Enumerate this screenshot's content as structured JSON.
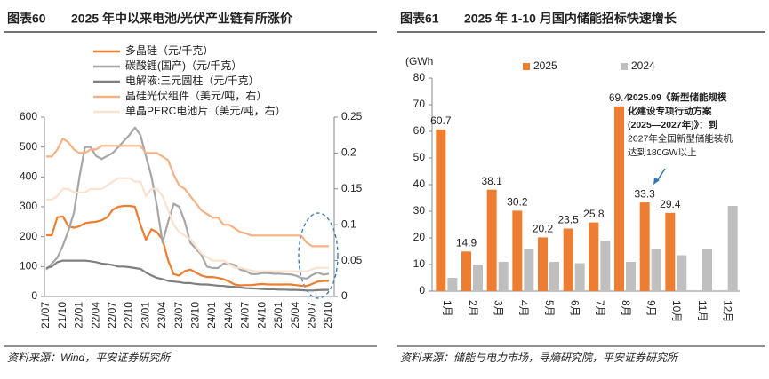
{
  "chart_data": [
    {
      "type": "line",
      "label": "图表60",
      "title": "2025 年中以来电池/光伏产业链有所涨价",
      "source": "资料来源：Wind，平安证券研究所",
      "categories": [
        "21/07",
        null,
        null,
        "21/10",
        null,
        null,
        "22/01",
        null,
        null,
        "22/04",
        null,
        null,
        "22/07",
        null,
        null,
        "22/10",
        null,
        null,
        "23/01",
        null,
        null,
        "23/04",
        null,
        null,
        "23/07",
        null,
        null,
        "23/10",
        null,
        null,
        "24/01",
        null,
        null,
        "24/04",
        null,
        null,
        "24/07",
        null,
        null,
        "24/10",
        null,
        null,
        "25/01",
        null,
        null,
        "25/04",
        null,
        null,
        "25/07",
        null,
        null,
        "25/10"
      ],
      "ylim": [
        0,
        600
      ],
      "yticks": [
        0,
        100,
        200,
        300,
        400,
        500,
        600
      ],
      "y2lim": [
        0,
        0.25
      ],
      "y2ticks": [
        0,
        0.05,
        0.1,
        0.15,
        0.2,
        0.25
      ],
      "legend": "upper left",
      "series": [
        {
          "name": "多晶硅（元/千克）",
          "color": "#ed7d31",
          "values": [
            205,
            205,
            265,
            268,
            235,
            230,
            235,
            245,
            248,
            250,
            255,
            265,
            290,
            300,
            303,
            303,
            300,
            240,
            190,
            225,
            215,
            190,
            120,
            75,
            70,
            85,
            90,
            80,
            70,
            65,
            65,
            62,
            58,
            50,
            40,
            37,
            38,
            38,
            40,
            42,
            40,
            40,
            40,
            40,
            40,
            38,
            36,
            35,
            42,
            50,
            52,
            52
          ]
        },
        {
          "name": "碳酸锂(国产)（元/千克）",
          "color": "#a6a6a6",
          "values": [
            90,
            110,
            130,
            170,
            220,
            280,
            400,
            500,
            500,
            470,
            460,
            470,
            480,
            500,
            520,
            540,
            565,
            540,
            470,
            400,
            300,
            180,
            250,
            310,
            300,
            250,
            180,
            160,
            140,
            100,
            95,
            95,
            110,
            110,
            105,
            90,
            85,
            75,
            75,
            78,
            78,
            76,
            76,
            75,
            74,
            70,
            62,
            60,
            72,
            80,
            73,
            76
          ]
        },
        {
          "name": "电解液:三元圆柱（元/千克）",
          "color": "#7f7f7f",
          "values": [
            95,
            100,
            115,
            120,
            120,
            120,
            120,
            120,
            118,
            115,
            110,
            108,
            105,
            100,
            100,
            98,
            95,
            92,
            80,
            70,
            62,
            58,
            52,
            50,
            48,
            45,
            45,
            42,
            40,
            40,
            38,
            36,
            35,
            33,
            32,
            30,
            28,
            27,
            26,
            25,
            24,
            24,
            23,
            23,
            22,
            22,
            21,
            20,
            20,
            21,
            22,
            22
          ]
        },
        {
          "name": "晶硅光伏组件（美元/吨，右）",
          "color": "#f4b183",
          "axis": "y2",
          "values": [
            0.195,
            0.195,
            0.205,
            0.22,
            0.215,
            0.205,
            0.2,
            0.2,
            0.205,
            0.205,
            0.21,
            0.21,
            0.21,
            0.21,
            0.21,
            0.21,
            0.21,
            0.21,
            0.2,
            0.2,
            0.2,
            0.195,
            0.19,
            0.17,
            0.155,
            0.15,
            0.14,
            0.13,
            0.12,
            0.115,
            0.11,
            0.11,
            0.1,
            0.1,
            0.095,
            0.09,
            0.088,
            0.085,
            0.085,
            0.085,
            0.085,
            0.085,
            0.085,
            0.085,
            0.085,
            0.085,
            0.085,
            0.075,
            0.07,
            0.07,
            0.07,
            0.07
          ]
        },
        {
          "name": "单晶PERC电池片（美元/吨，右）",
          "color": "#fbe1cf",
          "axis": "y2",
          "values": [
            0.135,
            0.135,
            0.14,
            0.15,
            0.15,
            0.145,
            0.145,
            0.145,
            0.15,
            0.15,
            0.15,
            0.155,
            0.16,
            0.165,
            0.165,
            0.165,
            0.16,
            0.16,
            0.14,
            0.15,
            0.15,
            0.14,
            0.12,
            0.1,
            0.09,
            0.085,
            0.08,
            0.07,
            0.06,
            0.055,
            0.05,
            0.05,
            0.05,
            0.045,
            0.04,
            0.04,
            0.038,
            0.036,
            0.035,
            0.035,
            0.035,
            0.035,
            0.035,
            0.035,
            0.035,
            0.035,
            0.035,
            0.035,
            0.038,
            0.04,
            0.04,
            0.04
          ]
        }
      ]
    },
    {
      "type": "bar",
      "label": "图表61",
      "title": "2025 年 1-10 月国内储能招标快速增长",
      "source": "资料来源：储能与电力市场，寻熵研究院，平安证券研究所",
      "ylabel": "(GWh",
      "categories": [
        "1月",
        "2月",
        "3月",
        "4月",
        "5月",
        "6月",
        "7月",
        "8月",
        "9月",
        "10月",
        "11月",
        "12月"
      ],
      "ylim": [
        0,
        80
      ],
      "yticks": [
        0,
        10,
        20,
        30,
        40,
        50,
        60,
        70,
        80
      ],
      "legend": "top",
      "series": [
        {
          "name": "2025",
          "color": "#ed7d31",
          "values": [
            60.7,
            14.9,
            38.1,
            30.2,
            20.2,
            23.5,
            25.8,
            69.4,
            33.3,
            29.4,
            null,
            null
          ]
        },
        {
          "name": "2024",
          "color": "#bfbfbf",
          "values": [
            5,
            10,
            11,
            16,
            11,
            10.5,
            19,
            11,
            16,
            13.5,
            16,
            32
          ]
        }
      ],
      "annotation": [
        "2025.09《新型储能规模",
        "化建设专项行动方案",
        "(2025—2027年)》：到",
        "2027年全国新型储能装机",
        "达到180GW以上"
      ]
    }
  ]
}
